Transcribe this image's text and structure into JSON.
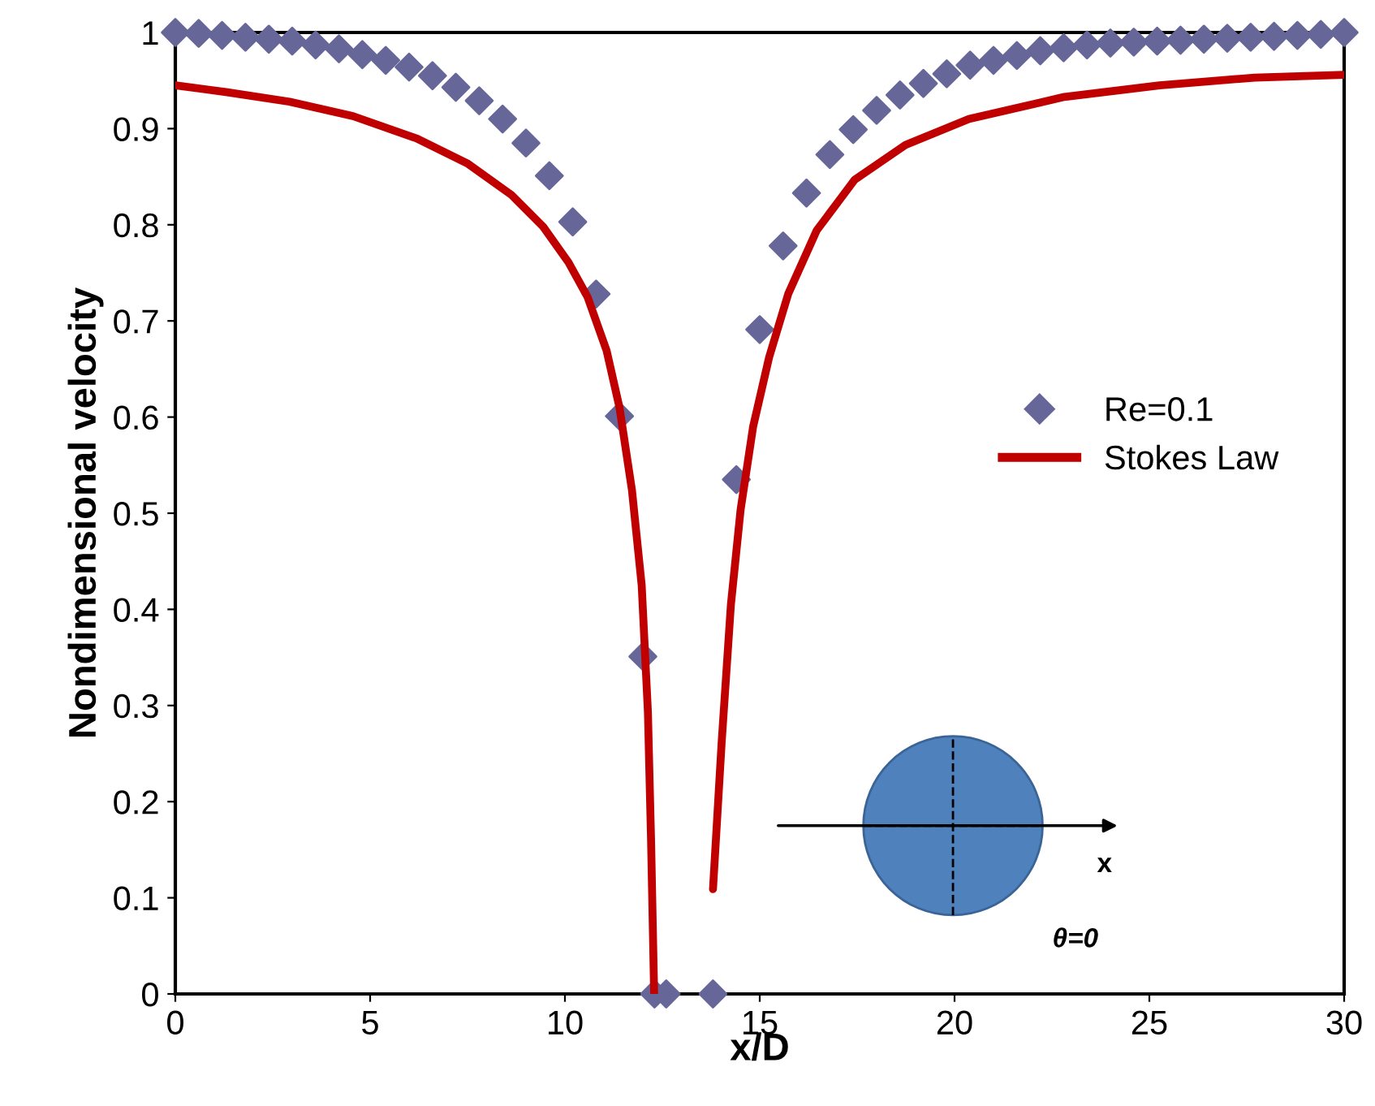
{
  "chart_data": {
    "type": "scatter",
    "xlabel": "x/D",
    "ylabel": "Nondimensional velocity",
    "xlim": [
      0,
      30
    ],
    "ylim": [
      0,
      1
    ],
    "xticks": [
      0,
      5,
      10,
      15,
      20,
      25,
      30
    ],
    "yticks": [
      0,
      0.1,
      0.2,
      0.3,
      0.4,
      0.5,
      0.6,
      0.7,
      0.8,
      0.9,
      1
    ],
    "grid": false,
    "legend": "right",
    "annotations": [
      "x",
      "θ=0"
    ],
    "series": [
      {
        "name": "Re=0.1",
        "marker": "diamond",
        "color": "#666699",
        "x": [
          0,
          0.6,
          1.2,
          1.8,
          2.4,
          3.0,
          3.6,
          4.2,
          4.8,
          5.4,
          6.0,
          6.6,
          7.2,
          7.8,
          8.4,
          9.0,
          9.6,
          10.2,
          10.8,
          11.4,
          12.0,
          12.3,
          12.6,
          13.8,
          14.4,
          15.0,
          15.6,
          16.2,
          16.8,
          17.4,
          18.0,
          18.6,
          19.2,
          19.8,
          20.4,
          21.0,
          21.6,
          22.2,
          22.8,
          23.4,
          24.0,
          24.6,
          25.2,
          25.8,
          26.4,
          27.0,
          27.6,
          28.2,
          28.8,
          29.4,
          30.0
        ],
        "values": [
          1.0,
          0.999,
          0.997,
          0.995,
          0.993,
          0.991,
          0.987,
          0.983,
          0.977,
          0.971,
          0.964,
          0.955,
          0.943,
          0.929,
          0.91,
          0.885,
          0.851,
          0.803,
          0.728,
          0.601,
          0.351,
          0,
          0,
          0,
          0.535,
          0.691,
          0.778,
          0.833,
          0.873,
          0.899,
          0.919,
          0.935,
          0.947,
          0.957,
          0.966,
          0.971,
          0.976,
          0.981,
          0.984,
          0.987,
          0.989,
          0.99,
          0.991,
          0.992,
          0.993,
          0.994,
          0.995,
          0.996,
          0.997,
          0.998,
          1.0
        ]
      },
      {
        "name": "Stokes Law",
        "type": "line",
        "line_style": "solid",
        "marker": "none",
        "color": "#c00000",
        "x": [
          0,
          1.3,
          2.93,
          4.56,
          6.18,
          7.49,
          8.63,
          9.44,
          10.09,
          10.58,
          11.07,
          11.4,
          11.72,
          11.97,
          12.13,
          12.21,
          12.29,
          13.0,
          13.8,
          14.02,
          14.26,
          14.51,
          14.83,
          15.24,
          15.73,
          16.46,
          17.44,
          18.74,
          20.37,
          22.82,
          25.26,
          27.7,
          30
        ],
        "values": [
          0.945,
          0.938,
          0.928,
          0.913,
          0.89,
          0.864,
          0.831,
          0.798,
          0.761,
          0.725,
          0.669,
          0.61,
          0.524,
          0.425,
          0.293,
          0.161,
          0.0,
          null,
          0.109,
          0.26,
          0.405,
          0.504,
          0.59,
          0.662,
          0.728,
          0.794,
          0.847,
          0.883,
          0.91,
          0.933,
          0.945,
          0.953,
          0.956
        ]
      }
    ]
  }
}
